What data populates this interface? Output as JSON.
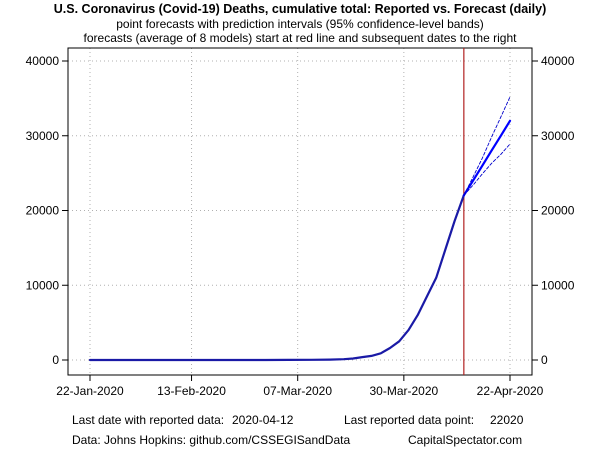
{
  "title": "U.S. Coronavirus (Covid-19) Deaths, cumulative total: Reported vs. Forecast (daily)",
  "subtitle_1": "point forecasts with prediction intervals (95% confidence-level bands)",
  "subtitle_2": "forecasts (average of 8 models) start at red line and subsequent dates to the right",
  "footer": {
    "last_date_label": "Last date with reported data:",
    "last_date_value": "2020-04-12",
    "last_point_label": "Last reported data point:",
    "last_point_value": "22020",
    "source": "Data: Johns Hopkins: github.com/CSSEGISandData",
    "brand": "CapitalSpectator.com"
  },
  "chart_data": {
    "type": "line",
    "x_axis_type": "date",
    "xlim": [
      "2020-01-22",
      "2020-04-22"
    ],
    "ylim": [
      0,
      40000
    ],
    "y_ticks": [
      0,
      10000,
      20000,
      30000,
      40000
    ],
    "x_ticks": [
      "2020-01-22",
      "2020-02-13",
      "2020-03-07",
      "2020-03-30",
      "2020-04-22"
    ],
    "x_tick_labels": [
      "22-Jan-2020",
      "13-Feb-2020",
      "07-Mar-2020",
      "30-Mar-2020",
      "22-Apr-2020"
    ],
    "y_axis_both_sides": true,
    "grid": true,
    "forecast_start": "2020-04-12",
    "colors": {
      "reported": "#1a1aa6",
      "forecast": "#0000ff",
      "bands": "#0000cc",
      "divider": "#b22222",
      "grid": "#b0b0b0"
    },
    "series": [
      {
        "role": "reported",
        "x": [
          "2020-01-22",
          "2020-02-29",
          "2020-03-05",
          "2020-03-10",
          "2020-03-14",
          "2020-03-17",
          "2020-03-19",
          "2020-03-21",
          "2020-03-23",
          "2020-03-25",
          "2020-03-27",
          "2020-03-29",
          "2020-03-31",
          "2020-04-02",
          "2020-04-04",
          "2020-04-06",
          "2020-04-08",
          "2020-04-10",
          "2020-04-12"
        ],
        "values": [
          0,
          1,
          12,
          28,
          57,
          108,
          200,
          390,
          550,
          900,
          1600,
          2500,
          4000,
          6000,
          8500,
          11000,
          14800,
          18600,
          22020
        ]
      },
      {
        "role": "forecast",
        "x": [
          "2020-04-12",
          "2020-04-14",
          "2020-04-16",
          "2020-04-18",
          "2020-04-20",
          "2020-04-22"
        ],
        "values": [
          22020,
          24000,
          26000,
          28000,
          30000,
          32000
        ]
      },
      {
        "role": "upper_band",
        "x": [
          "2020-04-12",
          "2020-04-14",
          "2020-04-16",
          "2020-04-18",
          "2020-04-20",
          "2020-04-22"
        ],
        "values": [
          22020,
          24500,
          27000,
          29800,
          32500,
          35200
        ]
      },
      {
        "role": "lower_band",
        "x": [
          "2020-04-12",
          "2020-04-14",
          "2020-04-16",
          "2020-04-18",
          "2020-04-20",
          "2020-04-22"
        ],
        "values": [
          22020,
          23400,
          24900,
          26300,
          27500,
          28900
        ]
      }
    ]
  }
}
